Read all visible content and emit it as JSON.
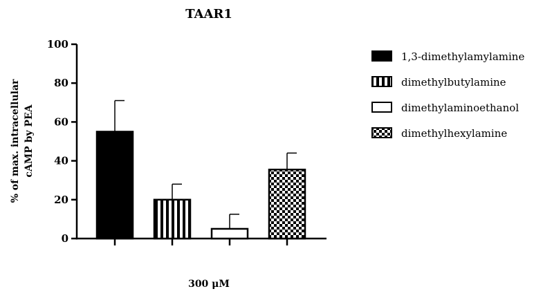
{
  "chart_data": {
    "type": "bar",
    "title": "TAAR1",
    "xlabel": "300 μM",
    "ylabel_lines": [
      "% of max. intracellular",
      "cAMP by PEA"
    ],
    "ylim": [
      0,
      100
    ],
    "yticks": [
      0,
      20,
      40,
      60,
      80,
      100
    ],
    "grid": false,
    "legend_position": "right",
    "series": [
      {
        "name": "1,3-dimethylamylamine",
        "value": 55,
        "error": 16,
        "pattern": "solid",
        "color": "#000000"
      },
      {
        "name": "dimethylbutylamine",
        "value": 20,
        "error": 8,
        "pattern": "vertical-stripes",
        "color": "#000000"
      },
      {
        "name": "dimethylaminoethanol",
        "value": 5,
        "error": 7.5,
        "pattern": "empty",
        "color": "#000000"
      },
      {
        "name": "dimethylhexylamine",
        "value": 35.5,
        "error": 8.5,
        "pattern": "checker",
        "color": "#000000"
      }
    ]
  }
}
